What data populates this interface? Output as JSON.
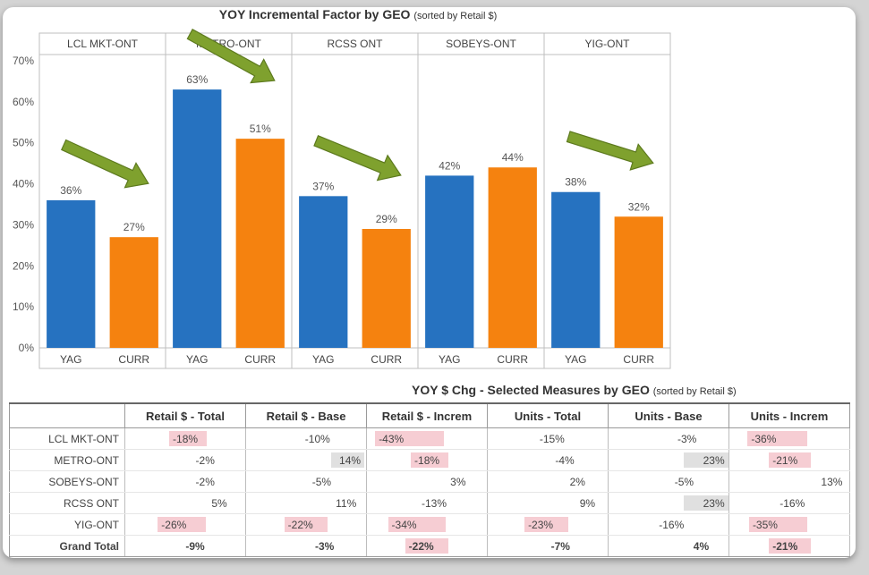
{
  "chart_data": [
    {
      "type": "bar",
      "title": "YOY Incremental Factor by GEO",
      "title_note": "(sorted by Retail $)",
      "panels": [
        "LCL MKT-ONT",
        "METRO-ONT",
        "RCSS ONT",
        "SOBEYS-ONT",
        "YIG-ONT"
      ],
      "categories": [
        "YAG",
        "CURR"
      ],
      "series": [
        {
          "values_by_panel": [
            36,
            63,
            37,
            42,
            38
          ],
          "color": "#2672c0"
        },
        {
          "values_by_panel": [
            27,
            51,
            29,
            44,
            32
          ],
          "color": "#f5820f"
        }
      ],
      "value_labels": {
        "YAG": [
          "36%",
          "63%",
          "37%",
          "42%",
          "38%"
        ],
        "CURR": [
          "27%",
          "51%",
          "29%",
          "44%",
          "32%"
        ]
      },
      "ylim": [
        0,
        70
      ],
      "yticks": [
        "0%",
        "10%",
        "20%",
        "30%",
        "40%",
        "50%",
        "60%",
        "70%"
      ],
      "annotations": "green arrows pointing down from YAG to CURR on LCL MKT-ONT, METRO-ONT, RCSS ONT, YIG-ONT",
      "arrow_panels": [
        0,
        1,
        2,
        4
      ],
      "arrow_color": "#7fa12e"
    },
    {
      "type": "table",
      "title": "YOY $ Chg - Selected Measures by GEO",
      "title_note": "(sorted by Retail $)",
      "columns": [
        "Retail $ - Total",
        "Retail $ - Base",
        "Retail $ - Increm",
        "Units - Total",
        "Units - Base",
        "Units - Increm"
      ],
      "rows": [
        {
          "label": "LCL MKT-ONT",
          "values": [
            "-18%",
            "-10%",
            "-43%",
            "-15%",
            "-3%",
            "-36%"
          ],
          "nums": [
            -18,
            -10,
            -43,
            -15,
            -3,
            -36
          ]
        },
        {
          "label": "METRO-ONT",
          "values": [
            "-2%",
            "14%",
            "-18%",
            "-4%",
            "23%",
            "-21%"
          ],
          "nums": [
            -2,
            14,
            -18,
            -4,
            23,
            -21
          ]
        },
        {
          "label": "SOBEYS-ONT",
          "values": [
            "-2%",
            "-5%",
            "3%",
            "2%",
            "-5%",
            "13%"
          ],
          "nums": [
            -2,
            -5,
            3,
            2,
            -5,
            13
          ]
        },
        {
          "label": "RCSS ONT",
          "values": [
            "5%",
            "11%",
            "-13%",
            "9%",
            "23%",
            "-16%"
          ],
          "nums": [
            5,
            11,
            -13,
            9,
            23,
            -16
          ]
        },
        {
          "label": "YIG-ONT",
          "values": [
            "-26%",
            "-22%",
            "-34%",
            "-23%",
            "-16%",
            "-35%"
          ],
          "nums": [
            -26,
            -22,
            -34,
            -23,
            -16,
            -35
          ]
        },
        {
          "label": "Grand Total",
          "values": [
            "-9%",
            "-3%",
            "-22%",
            "-7%",
            "4%",
            "-21%"
          ],
          "nums": [
            -9,
            -3,
            -22,
            -7,
            4,
            -21
          ]
        }
      ],
      "negative_color": "#f6cdd3",
      "positive_color": "#e0e0e0"
    }
  ]
}
